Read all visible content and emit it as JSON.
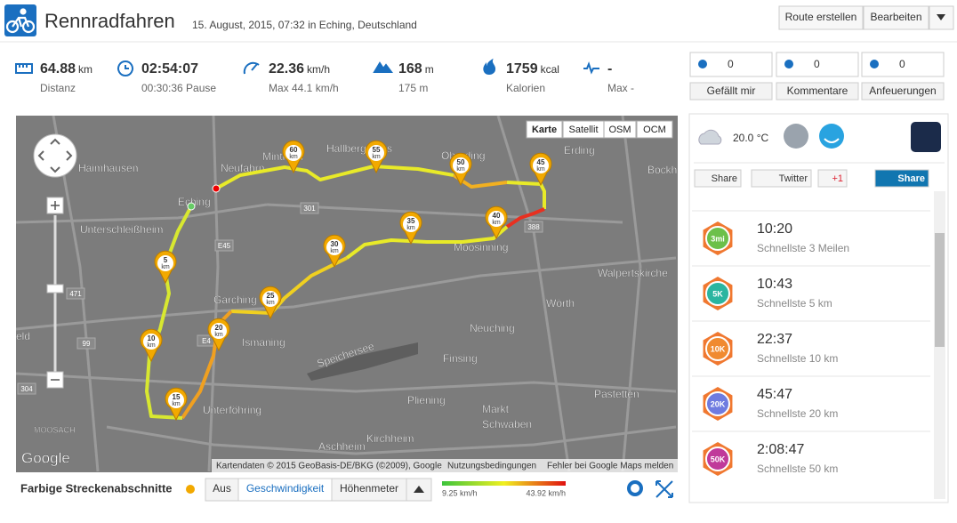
{
  "header": {
    "title": "Rennradfahren",
    "subtitle": "15. August, 2015, 07:32 in Eching, Deutschland",
    "buttons": [
      "Route erstellen",
      "Bearbeiten"
    ]
  },
  "stats": [
    {
      "value": "64.88",
      "unit": "km",
      "label": "Distanz"
    },
    {
      "value": "02:54:07",
      "label": "00:30:36 Pause"
    },
    {
      "value": "22.36",
      "unit": "km/h",
      "label": "Max 44.1 km/h"
    },
    {
      "value": "168",
      "unit": "m",
      "label": "175 m"
    },
    {
      "value": "1759",
      "unit": "kcal",
      "label": "Kalorien"
    },
    {
      "value": "-",
      "label": "Max -"
    }
  ],
  "social": [
    {
      "count": 0,
      "label": "Gefällt mir"
    },
    {
      "count": 0,
      "label": "Kommentare"
    },
    {
      "count": 0,
      "label": "Anfeuerungen"
    }
  ],
  "map": {
    "types": [
      "Karte",
      "Satellit",
      "OSM",
      "OCM"
    ],
    "places": [
      "Haimhausen",
      "Neufahrn",
      "Mintrach",
      "Hallbergmoos",
      "Oberding",
      "Erding",
      "Bockho",
      "Eching",
      "Unterschleißheim",
      "Garching",
      "Moosinning",
      "Walpertskirche",
      "Wörth",
      "Neuching",
      "Ismaning",
      "Speichersee",
      "Finsing",
      "Pliening",
      "Markt",
      "Schwaben",
      "Pastetten",
      "Unterföhring",
      "Aschheim",
      "Kirchheim",
      "eld",
      "MOOSACH"
    ],
    "roads": [
      "301",
      "388",
      "471",
      "99",
      "304",
      "E45",
      "E4"
    ],
    "marker_unit": "km",
    "markers": [
      "60",
      "55",
      "50",
      "45",
      "40",
      "35",
      "30",
      "25",
      "20",
      "15",
      "10",
      "5"
    ],
    "google": "Google",
    "attribution": "Kartendaten © 2015 GeoBasis-DE/BKG (©2009), Google",
    "terms": "Nutzungsbedingungen",
    "report": "Fehler bei Google Maps melden"
  },
  "legend": {
    "title": "Farbige Streckenabschnitte",
    "tabs": [
      "Aus",
      "Geschwindigkeit",
      "Höhenmeter"
    ],
    "min": "9.25 km/h",
    "max": "43.92 km/h"
  },
  "sidebar": {
    "temperature": "20.0 °C",
    "share": [
      "Share",
      "Twitter",
      "+1",
      "Share"
    ],
    "records": [
      {
        "badge": "3mi",
        "time": "10:20",
        "label": "Schnellste 3 Meilen"
      },
      {
        "badge": "5K",
        "time": "10:43",
        "label": "Schnellste 5 km"
      },
      {
        "badge": "10K",
        "time": "22:37",
        "label": "Schnellste 10 km"
      },
      {
        "badge": "20K",
        "time": "45:47",
        "label": "Schnellste 20 km"
      },
      {
        "badge": "50K",
        "time": "2:08:47",
        "label": "Schnellste 50 km"
      }
    ]
  }
}
